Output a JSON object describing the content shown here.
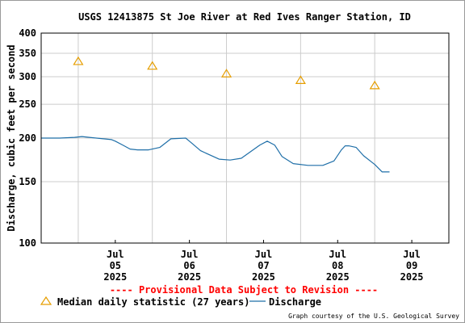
{
  "chart_data": {
    "type": "line",
    "title": "USGS 12413875 St Joe River at Red Ives Ranger Station, ID",
    "ylabel": "Discharge, cubic feet per second",
    "xlabel": "",
    "y_scale": "log",
    "ylim": [
      100,
      400
    ],
    "y_ticks": [
      100,
      150,
      200,
      250,
      300,
      350,
      400
    ],
    "x_ticks": [
      {
        "x": 1,
        "lines": [
          "Jul",
          "05",
          "2025"
        ]
      },
      {
        "x": 2,
        "lines": [
          "Jul",
          "06",
          "2025"
        ]
      },
      {
        "x": 3,
        "lines": [
          "Jul",
          "07",
          "2025"
        ]
      },
      {
        "x": 4,
        "lines": [
          "Jul",
          "08",
          "2025"
        ]
      },
      {
        "x": 5,
        "lines": [
          "Jul",
          "09",
          "2025"
        ]
      }
    ],
    "x_gridlines": [
      0.5,
      1.5,
      2.5,
      3.5,
      4.5
    ],
    "xlim": [
      0,
      5.5
    ],
    "grid": true,
    "series": [
      {
        "name": "Median daily statistic (27 years)",
        "marker": "triangle",
        "color": "#e69e00",
        "x": [
          0.5,
          1.5,
          2.5,
          3.5,
          4.5
        ],
        "y": [
          332,
          322,
          306,
          293,
          283
        ]
      },
      {
        "name": "Discharge",
        "marker": "line",
        "color": "#1f6fa8",
        "x": [
          0.0,
          0.25,
          0.45,
          0.55,
          0.65,
          0.95,
          1.0,
          1.1,
          1.2,
          1.3,
          1.45,
          1.6,
          1.75,
          1.95,
          2.0,
          2.05,
          2.15,
          2.4,
          2.55,
          2.7,
          2.95,
          3.05,
          3.15,
          3.25,
          3.4,
          3.6,
          3.8,
          3.95,
          4.05,
          4.1,
          4.15,
          4.25,
          4.35,
          4.5,
          4.6,
          4.7
        ],
        "y": [
          200,
          200,
          201,
          202,
          201,
          198,
          196,
          191,
          186,
          185,
          185,
          188,
          199,
          200,
          196,
          192,
          184,
          174,
          173,
          175,
          191,
          196,
          191,
          177,
          169,
          167,
          167,
          172,
          185,
          190,
          190,
          188,
          178,
          168,
          160,
          160
        ]
      }
    ],
    "provisional_notice": "---- Provisional Data Subject to Revision ----",
    "credit": "Graph courtesy of the U.S. Geological Survey",
    "colors": {
      "plot_border": "#000000",
      "grid": "#cccccc",
      "notice": "#ff0000"
    }
  }
}
